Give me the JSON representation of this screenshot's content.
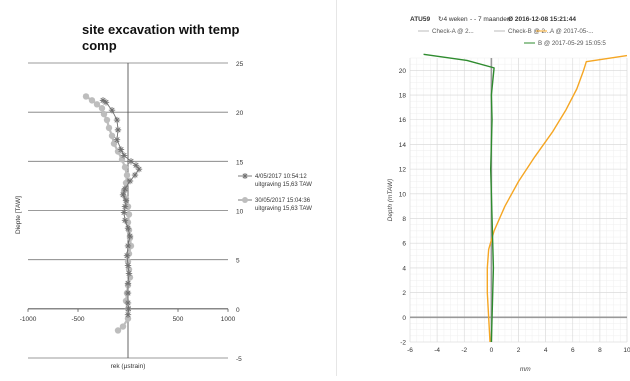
{
  "chart_data": [
    {
      "type": "scatter",
      "title": "site excavation  with temp comp",
      "title_lines": [
        "site excavation  with temp",
        "comp"
      ],
      "xlabel": "rek (µstrain)",
      "ylabel": "Diepte [TAW]",
      "xlim": [
        -1000,
        1000
      ],
      "ylim": [
        -5,
        25
      ],
      "x_ticks": [
        "-1000",
        "-500",
        "0",
        "500",
        "1000"
      ],
      "y_ticks": [
        "-5",
        "0",
        "5",
        "10",
        "15",
        "20",
        "25"
      ],
      "y_tick_values": [
        -5,
        0,
        5,
        10,
        15,
        20,
        25
      ],
      "x_tick_values": [
        -1000,
        -500,
        0,
        500,
        1000
      ],
      "grid": true,
      "legend_position": "right",
      "series": [
        {
          "name": "4/05/2017  10:54:12",
          "name_line2": "uitgraving 15,63 TAW",
          "marker": "star",
          "color": "#707070",
          "x": [
            -250,
            -220,
            -160,
            -110,
            -100,
            -110,
            -70,
            -40,
            30,
            80,
            110,
            70,
            20,
            -30,
            -50,
            -20,
            -30,
            -40,
            -30,
            0,
            20,
            0,
            -10,
            0,
            10,
            0,
            0,
            0,
            5,
            0
          ],
          "y": [
            21.2,
            21.0,
            20.2,
            19.2,
            18.2,
            17.2,
            16.2,
            15.6,
            15.0,
            14.6,
            14.2,
            13.6,
            13.0,
            12.2,
            11.6,
            11.0,
            10.4,
            9.8,
            9.0,
            8.2,
            7.4,
            6.4,
            5.4,
            4.4,
            3.6,
            2.6,
            1.6,
            0.6,
            0.0,
            -0.6
          ]
        },
        {
          "name": "30/05/2017  15:04:36",
          "name_line2": "uitgraving 15,63 TAW",
          "marker": "circle",
          "color": "#bdbdbd",
          "x": [
            -420,
            -360,
            -310,
            -260,
            -240,
            -210,
            -190,
            -160,
            -140,
            -100,
            -60,
            -30,
            -10,
            -20,
            -40,
            -20,
            0,
            10,
            0,
            10,
            20,
            30,
            10,
            0,
            10,
            20,
            0,
            -10,
            -20,
            0,
            0,
            -50,
            -100
          ],
          "y": [
            21.6,
            21.2,
            20.8,
            20.4,
            19.8,
            19.2,
            18.4,
            17.6,
            16.8,
            16.0,
            15.2,
            14.4,
            13.6,
            12.8,
            12.0,
            11.2,
            10.4,
            9.6,
            8.8,
            8.0,
            7.2,
            6.4,
            5.6,
            4.8,
            4.0,
            3.2,
            2.4,
            1.6,
            0.8,
            0.0,
            -1.0,
            -1.8,
            -2.2
          ]
        }
      ]
    },
    {
      "type": "line",
      "title": "ATU59",
      "header_items": [
        "↻4 weken",
        "- - 7 maanden",
        "Ø 2016-12-08 15:21:44"
      ],
      "xlabel": "mm",
      "ylabel": "Depth (mTAW)",
      "xlim": [
        -6,
        10
      ],
      "ylim": [
        -2,
        21
      ],
      "x_ticks": [
        "-6",
        "-4",
        "-2",
        "0",
        "2",
        "4",
        "6",
        "8",
        "10"
      ],
      "x_tick_values": [
        -6,
        -4,
        -2,
        0,
        2,
        4,
        6,
        8,
        10
      ],
      "y_ticks": [
        "-2",
        "0",
        "2",
        "4",
        "6",
        "8",
        "10",
        "12",
        "14",
        "16",
        "18",
        "20"
      ],
      "y_tick_values": [
        -2,
        0,
        2,
        4,
        6,
        8,
        10,
        12,
        14,
        16,
        18,
        20
      ],
      "grid": true,
      "legend_position": "top",
      "legend": [
        {
          "name": "Check-A @ 2...",
          "color": "#bbbbbb"
        },
        {
          "name": "Check-B @ 2...",
          "color": "#bbbbbb"
        },
        {
          "name": "A @ 2017-05-...",
          "color": "#f5a623"
        },
        {
          "name": "B @ 2017-05-29 15:05:5",
          "color": "#2e8b2e"
        }
      ],
      "series": [
        {
          "name": "A @ 2017-05-...",
          "color": "#f5a623",
          "x": [
            -0.1,
            -0.2,
            -0.3,
            -0.3,
            -0.2,
            0.2,
            1.0,
            2.0,
            3.2,
            4.5,
            5.5,
            6.3,
            6.8,
            7.0,
            10.0
          ],
          "y": [
            -2.0,
            0.0,
            2.0,
            4.0,
            5.5,
            7.0,
            9.0,
            11.0,
            13.0,
            15.0,
            16.8,
            18.5,
            20.0,
            20.7,
            21.2
          ]
        },
        {
          "name": "B @ 2017-05-29 15:05:5",
          "color": "#2e8b2e",
          "x": [
            0.0,
            0.05,
            0.1,
            0.15,
            0.1,
            0.05,
            0.0,
            -0.05,
            0.0,
            0.05,
            0.0,
            0.2,
            -1.8,
            -5.0
          ],
          "y": [
            -2.0,
            0.0,
            2.0,
            4.0,
            6.0,
            8.0,
            10.0,
            12.0,
            14.0,
            16.0,
            18.0,
            20.2,
            20.8,
            21.3
          ]
        }
      ]
    }
  ]
}
